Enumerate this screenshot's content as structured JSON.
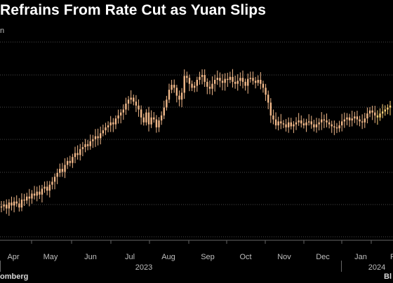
{
  "header": {
    "title": "Refrains From Rate Cut as Yuan Slips",
    "subtitle": "n"
  },
  "footer": {
    "source": "omberg",
    "brand": "Bl"
  },
  "colors": {
    "background": "#000000",
    "candle": "#f2b98a",
    "candle_recent": "#ffd27a",
    "grid": "#4a4a4a",
    "text": "#bfbfbf"
  },
  "chart_data": {
    "type": "candlestick",
    "title": "Refrains From Rate Cut as Yuan Slips",
    "subtitle": "n",
    "x_ticks": [
      "Apr",
      "May",
      "Jun",
      "Jul",
      "Aug",
      "Sep",
      "Oct",
      "Nov",
      "Dec",
      "Jan",
      "F"
    ],
    "x_year_labels": [
      "2023",
      "2024"
    ],
    "grid": "horizontal",
    "y_labels_visible": false,
    "series": [
      {
        "values": [
          0.2,
          0.22,
          0.18,
          0.24,
          0.21,
          0.25,
          0.23,
          0.19,
          0.27,
          0.26,
          0.3,
          0.28,
          0.33,
          0.31,
          0.35,
          0.32,
          0.38,
          0.4,
          0.36,
          0.42,
          0.45,
          0.5,
          0.54,
          0.58,
          0.55,
          0.62,
          0.66,
          0.64,
          0.7,
          0.74,
          0.72,
          0.78,
          0.8,
          0.83,
          0.81,
          0.86,
          0.88,
          0.91,
          0.89,
          0.94,
          0.97,
          1.0,
          1.02,
          1.05,
          1.03,
          1.09,
          1.12,
          1.15,
          1.18,
          1.24,
          1.28,
          1.3,
          1.26,
          1.22,
          1.18,
          1.1,
          1.05,
          1.15,
          1.03,
          1.1,
          1.08,
          1.0,
          1.07,
          1.12,
          1.2,
          1.28,
          1.38,
          1.43,
          1.4,
          1.32,
          1.28,
          1.35,
          1.52,
          1.5,
          1.44,
          1.4,
          1.42,
          1.48,
          1.51,
          1.53,
          1.46,
          1.41,
          1.39,
          1.44,
          1.48,
          1.5,
          1.47,
          1.45,
          1.49,
          1.48,
          1.51,
          1.46,
          1.44,
          1.47,
          1.5,
          1.46,
          1.42,
          1.49,
          1.5,
          1.47,
          1.45,
          1.48,
          1.44,
          1.4,
          1.33,
          1.25,
          1.12,
          1.08,
          1.02,
          1.06,
          1.04,
          1.03,
          1.0,
          1.05,
          1.01,
          1.03,
          1.05,
          1.07,
          1.04,
          1.02,
          1.05,
          1.06,
          1.03,
          1.0,
          1.03,
          1.05,
          1.08,
          1.07,
          1.05,
          1.03,
          1.01,
          1.0,
          0.99,
          1.02,
          1.06,
          1.08,
          1.1,
          1.07,
          1.09,
          1.11,
          1.08,
          1.06,
          1.05,
          1.09,
          1.14,
          1.17,
          1.15,
          1.12,
          1.1,
          1.14,
          1.16,
          1.18,
          1.2,
          1.22
        ]
      }
    ]
  }
}
